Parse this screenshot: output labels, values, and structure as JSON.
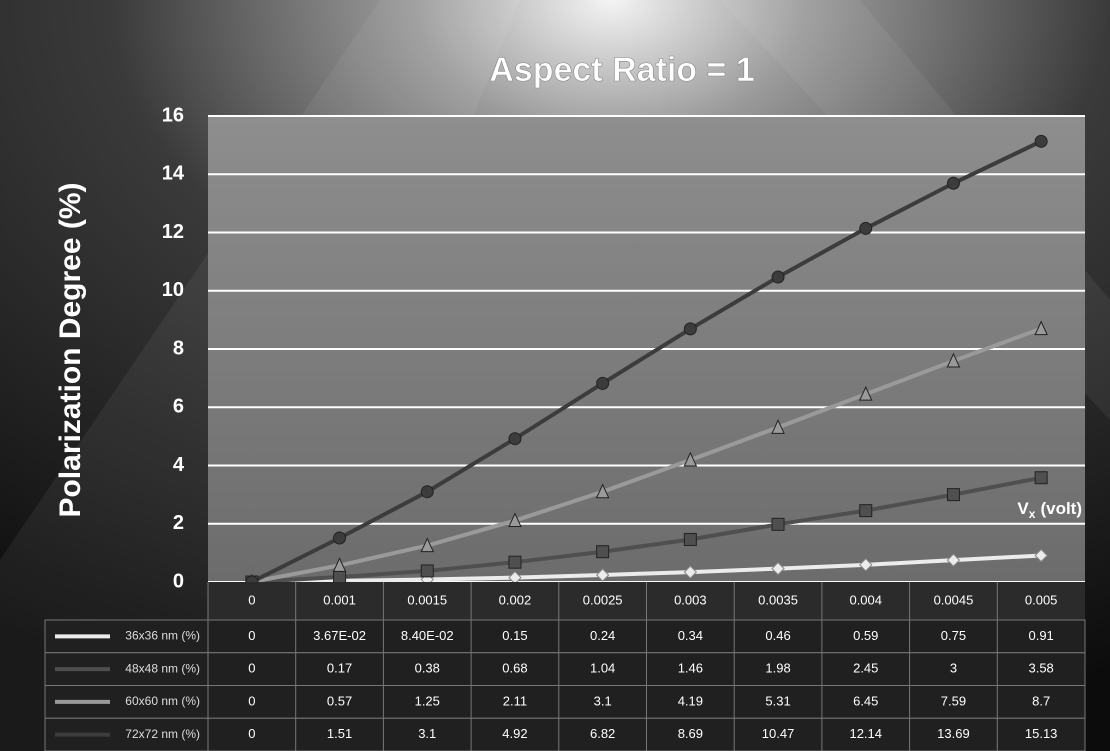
{
  "chart_data": {
    "type": "line",
    "title": "Aspect Ratio = 1",
    "y_label": "Polarization Degree (%)",
    "x_label": "V",
    "x_label_sub": "x",
    "x_label_unit": "(volt)",
    "categories": [
      "0",
      "0.001",
      "0.0015",
      "0.002",
      "0.0025",
      "0.003",
      "0.0035",
      "0.004",
      "0.0045",
      "0.005"
    ],
    "series": [
      {
        "name": "36x36 nm (%)",
        "color": "#ececec",
        "marker": "diamond",
        "values": [
          0,
          0.0367,
          0.084,
          0.15,
          0.24,
          0.34,
          0.46,
          0.59,
          0.75,
          0.91
        ],
        "value_labels": [
          "0",
          "3.67E-02",
          "8.40E-02",
          "0.15",
          "0.24",
          "0.34",
          "0.46",
          "0.59",
          "0.75",
          "0.91"
        ]
      },
      {
        "name": "48x48 nm (%)",
        "color": "#4f4f4f",
        "marker": "square",
        "values": [
          0,
          0.17,
          0.38,
          0.68,
          1.04,
          1.46,
          1.98,
          2.45,
          3,
          3.58
        ]
      },
      {
        "name": "60x60 nm (%)",
        "color": "#9a9a9a",
        "marker": "triangle",
        "values": [
          0,
          0.57,
          1.25,
          2.11,
          3.1,
          4.19,
          5.31,
          6.45,
          7.59,
          8.7
        ]
      },
      {
        "name": "72x72 nm (%)",
        "color": "#3c3c3c",
        "marker": "circle",
        "values": [
          0,
          1.51,
          3.1,
          4.92,
          6.82,
          8.69,
          10.47,
          12.14,
          13.69,
          15.13
        ]
      }
    ],
    "ylim": [
      0,
      16
    ],
    "yticks": [
      0,
      2,
      4,
      6,
      8,
      10,
      12,
      14,
      16
    ],
    "grid": true
  }
}
